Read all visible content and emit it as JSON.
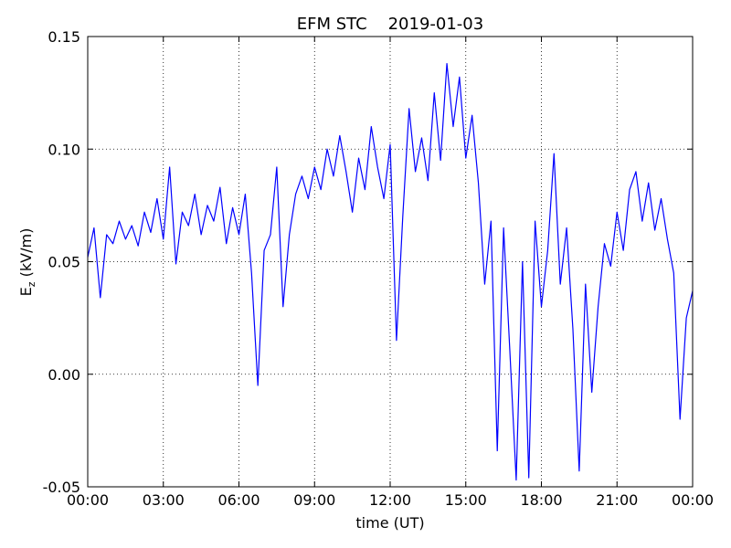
{
  "chart_data": {
    "type": "line",
    "title": "EFM STC    2019-01-03",
    "xlabel": "time (UT)",
    "ylabel": {
      "base": "E",
      "sub": "z",
      "rest": " (kV/m)"
    },
    "x": [
      0,
      0.25,
      0.5,
      0.75,
      1,
      1.25,
      1.5,
      1.75,
      2,
      2.25,
      2.5,
      2.75,
      3,
      3.25,
      3.5,
      3.75,
      4,
      4.25,
      4.5,
      4.75,
      5,
      5.25,
      5.5,
      5.75,
      6,
      6.25,
      6.5,
      6.75,
      7,
      7.25,
      7.5,
      7.75,
      8,
      8.25,
      8.5,
      8.75,
      9,
      9.25,
      9.5,
      9.75,
      10,
      10.25,
      10.5,
      10.75,
      11,
      11.25,
      11.5,
      11.75,
      12,
      12.25,
      12.5,
      12.75,
      13,
      13.25,
      13.5,
      13.75,
      14,
      14.25,
      14.5,
      14.75,
      15,
      15.25,
      15.5,
      15.75,
      16,
      16.25,
      16.5,
      16.75,
      17,
      17.25,
      17.5,
      17.75,
      18,
      18.25,
      18.5,
      18.75,
      19,
      19.25,
      19.5,
      19.75,
      20,
      20.25,
      20.5,
      20.75,
      21,
      21.25,
      21.5,
      21.75,
      22,
      22.25,
      22.5,
      22.75,
      23,
      23.25,
      23.5,
      23.75,
      24
    ],
    "series": [
      {
        "name": "Ez",
        "color": "#0000ff",
        "values": [
          0.052,
          0.065,
          0.034,
          0.062,
          0.058,
          0.068,
          0.06,
          0.066,
          0.057,
          0.072,
          0.063,
          0.078,
          0.06,
          0.092,
          0.049,
          0.072,
          0.066,
          0.08,
          0.062,
          0.075,
          0.068,
          0.083,
          0.058,
          0.074,
          0.062,
          0.08,
          0.045,
          -0.005,
          0.055,
          0.062,
          0.092,
          0.03,
          0.062,
          0.08,
          0.088,
          0.078,
          0.092,
          0.082,
          0.1,
          0.088,
          0.106,
          0.09,
          0.072,
          0.096,
          0.082,
          0.11,
          0.092,
          0.078,
          0.102,
          0.015,
          0.07,
          0.118,
          0.09,
          0.105,
          0.086,
          0.125,
          0.095,
          0.138,
          0.11,
          0.132,
          0.096,
          0.115,
          0.085,
          0.04,
          0.068,
          -0.034,
          0.065,
          0.01,
          -0.047,
          0.05,
          -0.046,
          0.068,
          0.03,
          0.055,
          0.098,
          0.04,
          0.065,
          0.02,
          -0.043,
          0.04,
          -0.008,
          0.03,
          0.058,
          0.048,
          0.072,
          0.055,
          0.082,
          0.09,
          0.068,
          0.085,
          0.064,
          0.078,
          0.06,
          0.045,
          -0.02,
          0.025,
          0.037
        ]
      }
    ],
    "xlim": [
      0,
      24
    ],
    "xticks": [
      {
        "value": 0,
        "label": "00:00"
      },
      {
        "value": 3,
        "label": "03:00"
      },
      {
        "value": 6,
        "label": "06:00"
      },
      {
        "value": 9,
        "label": "09:00"
      },
      {
        "value": 12,
        "label": "12:00"
      },
      {
        "value": 15,
        "label": "15:00"
      },
      {
        "value": 18,
        "label": "18:00"
      },
      {
        "value": 21,
        "label": "21:00"
      },
      {
        "value": 24,
        "label": "00:00"
      }
    ],
    "ylim": [
      -0.05,
      0.15
    ],
    "yticks": [
      -0.05,
      {
        "value": 0,
        "label": "0.00"
      },
      0.05,
      {
        "value": 0.1,
        "label": "0.10"
      },
      0.15
    ],
    "grid": true
  }
}
